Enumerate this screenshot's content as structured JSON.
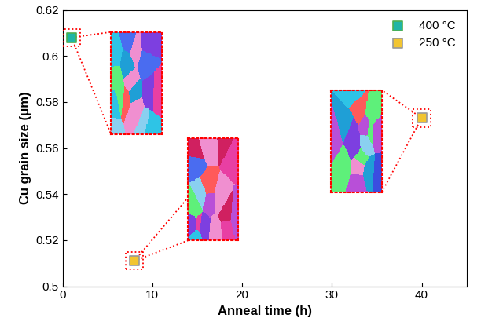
{
  "chart_data": {
    "type": "scatter",
    "x_label": "Anneal time (h)",
    "y_label": "Cu grain size (μm)",
    "series": [
      {
        "name": "400 °C",
        "color": "#1fb5a6",
        "marker": "square",
        "x": [
          1
        ],
        "values": [
          0.608
        ]
      },
      {
        "name": "250 °C",
        "color": "#f2c531",
        "marker": "square",
        "x": [
          8,
          40
        ],
        "values": [
          0.511,
          0.573
        ]
      }
    ],
    "xlim": [
      0,
      45
    ],
    "xticks": [
      0,
      10,
      20,
      30,
      40
    ],
    "ylim": [
      0.5,
      0.62
    ],
    "yticks": [
      0.5,
      0.52,
      0.54,
      0.56,
      0.58,
      0.6,
      0.62
    ],
    "grid": false,
    "legend": "upper right"
  }
}
